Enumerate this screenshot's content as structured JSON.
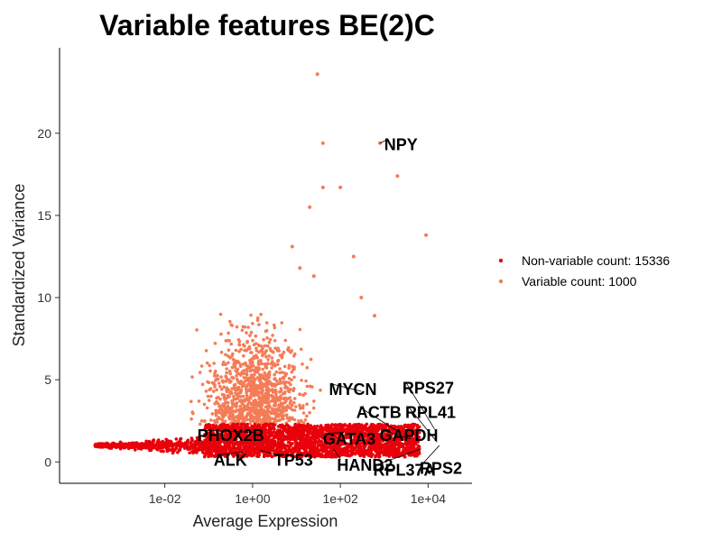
{
  "chart_data": {
    "type": "scatter",
    "title": "Variable features BE(2)C",
    "xlabel": "Average Expression",
    "ylabel": "Standardized Variance",
    "x_scale": "log10",
    "xlim": [
      4e-05,
      100000
    ],
    "ylim": [
      -1.3,
      25.2
    ],
    "x_ticks": [
      {
        "value": 0.01,
        "label": "1e-02"
      },
      {
        "value": 1,
        "label": "1e+00"
      },
      {
        "value": 100,
        "label": "1e+02"
      },
      {
        "value": 10000,
        "label": "1e+04"
      }
    ],
    "y_ticks": [
      {
        "value": 0,
        "label": "0"
      },
      {
        "value": 5,
        "label": "5"
      },
      {
        "value": 10,
        "label": "10"
      },
      {
        "value": 15,
        "label": "15"
      },
      {
        "value": 20,
        "label": "20"
      }
    ],
    "grid": false,
    "legend_position": "right",
    "series": [
      {
        "name": "Non-variable count: 15336",
        "color": "#e8000b"
      },
      {
        "name": "Variable count: 1000",
        "color": "#f47c57"
      }
    ],
    "notable_points": [
      {
        "x": 30,
        "y": 23.6
      },
      {
        "x": 40,
        "y": 19.4
      },
      {
        "x": 800,
        "y": 19.4
      },
      {
        "x": 2000,
        "y": 17.4
      },
      {
        "x": 40,
        "y": 16.7
      },
      {
        "x": 100,
        "y": 16.7
      },
      {
        "x": 20,
        "y": 15.5
      },
      {
        "x": 8,
        "y": 13.1
      },
      {
        "x": 9000,
        "y": 13.8
      },
      {
        "x": 200,
        "y": 12.5
      },
      {
        "x": 12,
        "y": 11.8
      },
      {
        "x": 25,
        "y": 11.3
      },
      {
        "x": 300,
        "y": 10.0
      },
      {
        "x": 600,
        "y": 8.9
      }
    ],
    "labeled_genes": [
      {
        "label": "NPY",
        "x": 800,
        "y": 19.4,
        "tx": 1000,
        "ty": 19.3
      },
      {
        "label": "MYCN",
        "x": 300,
        "y": 4.3,
        "tx": 55,
        "ty": 4.4
      },
      {
        "label": "RPS27",
        "x": 14000,
        "y": 2.0,
        "tx": 2600,
        "ty": 4.5
      },
      {
        "label": "ACTB",
        "x": 2200,
        "y": 1.8,
        "tx": 230,
        "ty": 3.0
      },
      {
        "label": "RPL41",
        "x": 16000,
        "y": 1.2,
        "tx": 3000,
        "ty": 3.0
      },
      {
        "label": "PHOX2B",
        "x": 1.2,
        "y": 1.8,
        "tx": 0.055,
        "ty": 1.6
      },
      {
        "label": "GATA3",
        "x": 120,
        "y": 1.8,
        "tx": 40,
        "ty": 1.4
      },
      {
        "label": "GAPDH",
        "x": 4000,
        "y": 1.4,
        "tx": 780,
        "ty": 1.6
      },
      {
        "label": "ALK",
        "x": 0.6,
        "y": 0.6,
        "tx": 0.13,
        "ty": 0.1
      },
      {
        "label": "TP53",
        "x": 1.5,
        "y": 0.7,
        "tx": 3.1,
        "ty": 0.1
      },
      {
        "label": "HAND2",
        "x": 70,
        "y": 0.8,
        "tx": 84,
        "ty": -0.2
      },
      {
        "label": "RPL37A",
        "x": 7000,
        "y": 0.8,
        "tx": 560,
        "ty": -0.5
      },
      {
        "label": "RPS2",
        "x": 18000,
        "y": 1.0,
        "tx": 6400,
        "ty": -0.4
      }
    ]
  }
}
